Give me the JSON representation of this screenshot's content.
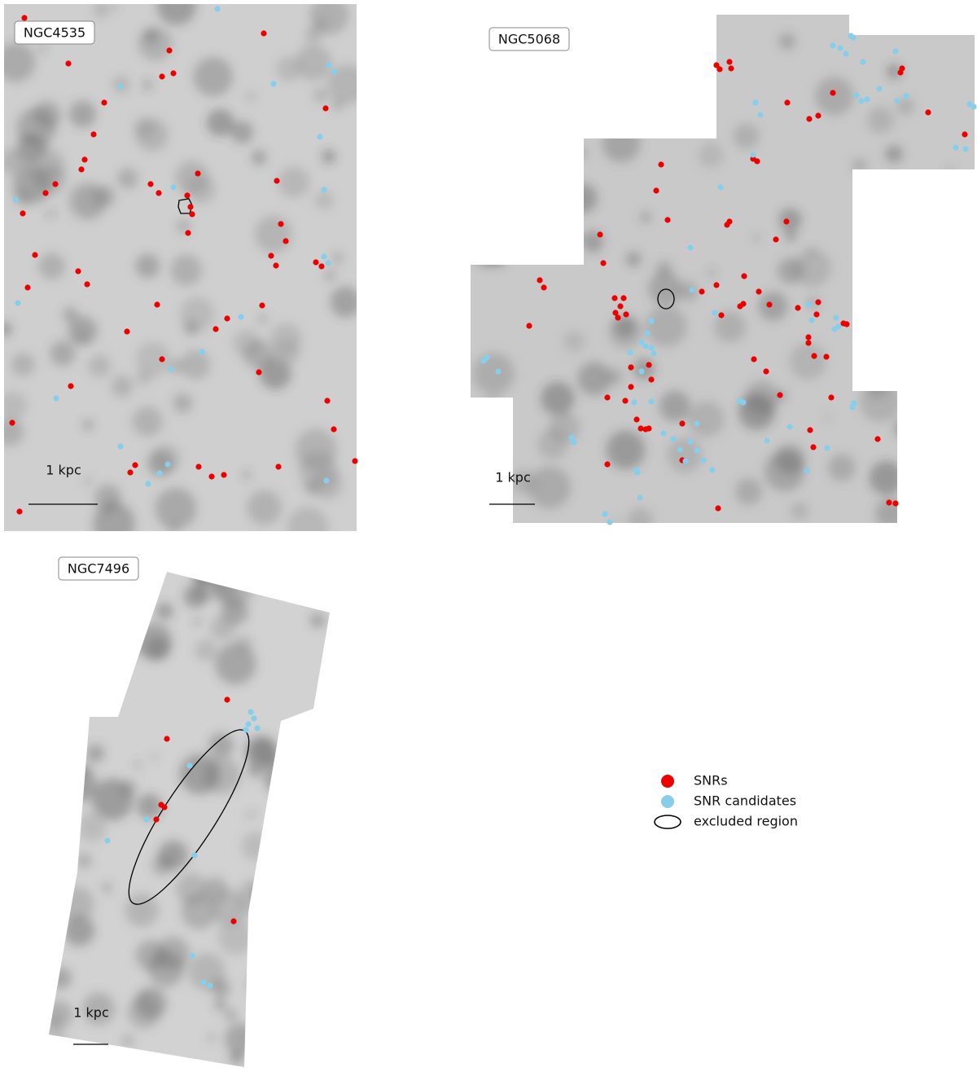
{
  "panels": [
    {
      "label": "NGC4535",
      "scale_label": "1 kpc"
    },
    {
      "label": "NGC5068",
      "scale_label": "1 kpc"
    },
    {
      "label": "NGC7496",
      "scale_label": "1 kpc"
    }
  ],
  "legend": {
    "items": [
      "SNRs",
      "SNR candidates",
      "excluded region"
    ]
  }
}
